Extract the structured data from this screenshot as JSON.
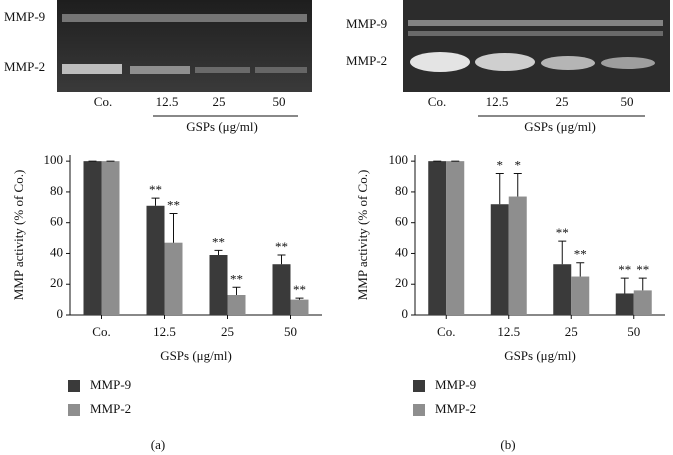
{
  "figure": {
    "gels": [
      {
        "bands": [
          "MMP-9",
          "MMP-2"
        ],
        "lanes": [
          "Co.",
          "12.5",
          "25",
          "50"
        ],
        "xlabel": "GSPs (μg/ml)"
      },
      {
        "bands": [
          "MMP-9",
          "MMP-2"
        ],
        "lanes": [
          "Co.",
          "12.5",
          "25",
          "50"
        ],
        "xlabel": "GSPs (μg/ml)"
      }
    ],
    "panel_labels": [
      "(a)",
      "(b)"
    ]
  },
  "chart_data": [
    {
      "type": "bar",
      "ylabel": "MMP activity (% of Co.)",
      "xlabel": "GSPs (μg/ml)",
      "categories": [
        "Co.",
        "12.5",
        "25",
        "50"
      ],
      "series": [
        {
          "name": "MMP-9",
          "color": "#3a3a3a",
          "values": [
            100,
            71,
            39,
            33
          ],
          "errors": [
            0,
            5,
            3,
            6
          ],
          "annotations": [
            null,
            "**",
            "**",
            "**"
          ]
        },
        {
          "name": "MMP-2",
          "color": "#8e8e8e",
          "values": [
            100,
            47,
            13,
            10
          ],
          "errors": [
            0,
            19,
            5,
            1
          ],
          "annotations": [
            null,
            "**",
            "**",
            "**"
          ]
        }
      ],
      "ylim": [
        0,
        104
      ],
      "yticks": [
        0,
        20,
        40,
        60,
        80,
        100
      ]
    },
    {
      "type": "bar",
      "ylabel": "MMP activity (% of Co.)",
      "xlabel": "GSPs (μg/ml)",
      "categories": [
        "Co.",
        "12.5",
        "25",
        "50"
      ],
      "series": [
        {
          "name": "MMP-9",
          "color": "#3a3a3a",
          "values": [
            100,
            72,
            33,
            14
          ],
          "errors": [
            0,
            20,
            15,
            10
          ],
          "annotations": [
            null,
            "*",
            "**",
            "**"
          ]
        },
        {
          "name": "MMP-2",
          "color": "#8e8e8e",
          "values": [
            100,
            77,
            25,
            16
          ],
          "errors": [
            0,
            15,
            9,
            8
          ],
          "annotations": [
            null,
            "*",
            "**",
            "**"
          ]
        }
      ],
      "ylim": [
        0,
        104
      ],
      "yticks": [
        0,
        20,
        40,
        60,
        80,
        100
      ]
    }
  ]
}
